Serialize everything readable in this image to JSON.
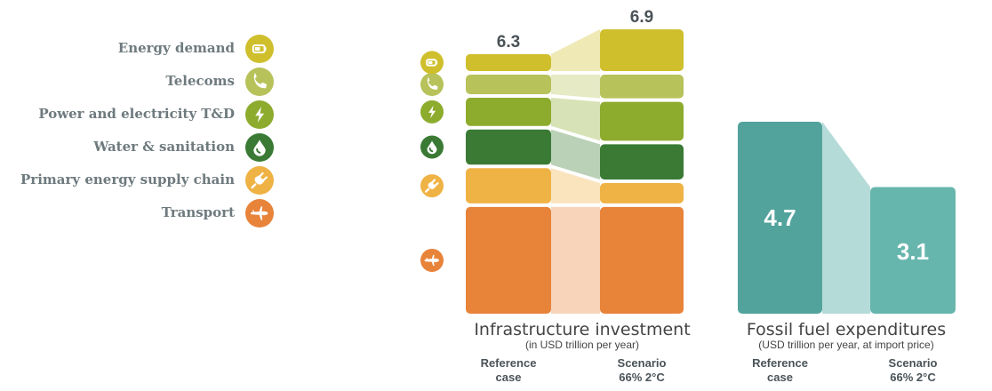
{
  "legend": [
    {
      "label": "Energy demand",
      "icon": "battery-icon",
      "color": "#cfbf2c"
    },
    {
      "label": "Telecoms",
      "icon": "phone-icon",
      "color": "#b7c25a"
    },
    {
      "label": "Power and electricity T&D",
      "icon": "lightning-icon",
      "color": "#8dab2d"
    },
    {
      "label": "Water & sanitation",
      "icon": "water-drop-icon",
      "color": "#3a7a34"
    },
    {
      "label": "Primary energy supply chain",
      "icon": "plug-icon",
      "color": "#efb244"
    },
    {
      "label": "Transport",
      "icon": "airplane-icon",
      "color": "#e8833a"
    }
  ],
  "chart_data": [
    {
      "type": "bar",
      "stacked": true,
      "title": "Infrastructure investment",
      "subtitle": "(in USD trillion per year)",
      "categories": [
        "Reference case",
        "Scenario 66% 2°C"
      ],
      "totals": [
        6.3,
        6.9
      ],
      "ylim": [
        0,
        6.9
      ],
      "series": [
        {
          "name": "Transport",
          "color": "#e8833a",
          "values": [
            2.59,
            2.59
          ]
        },
        {
          "name": "Primary energy supply chain",
          "color": "#efb244",
          "values": [
            0.94,
            0.58
          ]
        },
        {
          "name": "Water & sanitation",
          "color": "#3a7a34",
          "values": [
            0.94,
            0.94
          ]
        },
        {
          "name": "Power and electricity T&D",
          "color": "#8dab2d",
          "values": [
            0.77,
            1.03
          ]
        },
        {
          "name": "Telecoms",
          "color": "#b7c25a",
          "values": [
            0.56,
            0.66
          ]
        },
        {
          "name": "Energy demand",
          "color": "#cfbf2c",
          "values": [
            0.5,
            1.1
          ]
        }
      ]
    },
    {
      "type": "bar",
      "title": "Fossil fuel expenditures",
      "subtitle": "(USD trillion per year, at import price)",
      "categories": [
        "Reference case",
        "Scenario 66% 2°C"
      ],
      "values": [
        4.7,
        3.1
      ],
      "colors": [
        "#52a39c",
        "#67b6ae"
      ],
      "ylim": [
        0,
        4.7
      ]
    }
  ]
}
